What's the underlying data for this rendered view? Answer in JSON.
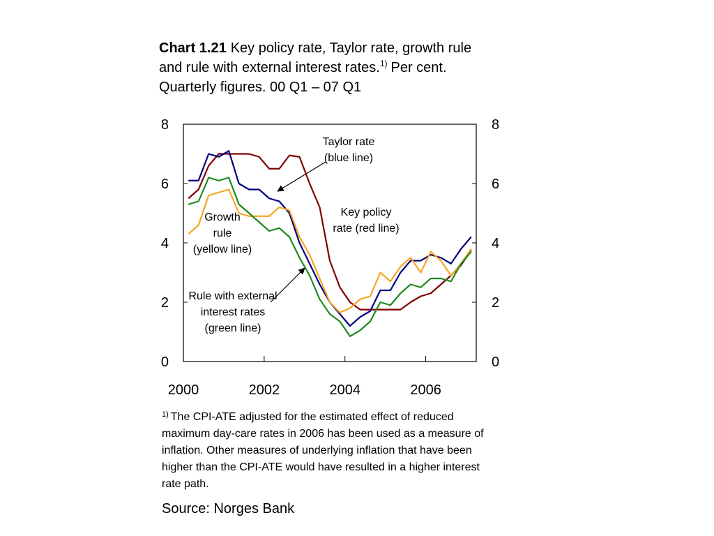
{
  "chart_data": {
    "type": "line",
    "title": {
      "number": "Chart 1.21",
      "lines": [
        "Key policy rate, Taylor rate, growth rule",
        "and rule with external interest rates.",
        "Quarterly figures. 00 Q1 –  07 Q1"
      ],
      "footnote_ref": "1)",
      "after_ref": "Per cent."
    },
    "x": [
      2000.125,
      2000.375,
      2000.625,
      2000.875,
      2001.125,
      2001.375,
      2001.625,
      2001.875,
      2002.125,
      2002.375,
      2002.625,
      2002.875,
      2003.125,
      2003.375,
      2003.625,
      2003.875,
      2004.125,
      2004.375,
      2004.625,
      2004.875,
      2005.125,
      2005.375,
      2005.625,
      2005.875,
      2006.125,
      2006.375,
      2006.625,
      2006.875,
      2007.125
    ],
    "xlim": [
      2000,
      2007.25
    ],
    "xticks": [
      2000,
      2002,
      2004,
      2006
    ],
    "ylim": [
      0,
      8
    ],
    "yticks": [
      0,
      2,
      4,
      6,
      8
    ],
    "y2lim": [
      0,
      8
    ],
    "y2ticks": [
      0,
      2,
      4,
      6,
      8
    ],
    "series": [
      {
        "name": "Key policy rate",
        "color": "#800000",
        "values": [
          5.5,
          5.8,
          6.6,
          7.0,
          7.0,
          7.0,
          7.0,
          6.9,
          6.5,
          6.5,
          6.95,
          6.9,
          6.0,
          5.2,
          3.4,
          2.5,
          2.0,
          1.75,
          1.75,
          1.75,
          1.75,
          1.75,
          2.0,
          2.2,
          2.3,
          2.6,
          2.9,
          3.25,
          3.75
        ]
      },
      {
        "name": "Taylor rate",
        "color": "#000080",
        "values": [
          6.1,
          6.1,
          7.0,
          6.9,
          7.1,
          6.0,
          5.8,
          5.8,
          5.5,
          5.4,
          5.0,
          4.0,
          3.3,
          2.6,
          2.0,
          1.6,
          1.2,
          1.5,
          1.7,
          2.4,
          2.4,
          3.0,
          3.4,
          3.4,
          3.6,
          3.5,
          3.3,
          3.8,
          4.2
        ]
      },
      {
        "name": "Growth rule",
        "color": "#f5a623",
        "values": [
          4.3,
          4.6,
          5.6,
          5.7,
          5.8,
          5.0,
          4.9,
          4.9,
          4.9,
          5.2,
          5.1,
          4.2,
          3.6,
          2.8,
          2.0,
          1.65,
          1.8,
          2.1,
          2.2,
          3.0,
          2.7,
          3.2,
          3.5,
          3.0,
          3.7,
          3.4,
          2.9,
          3.3,
          3.8
        ]
      },
      {
        "name": "Rule with external interest rates",
        "color": "#1e8a1e",
        "values": [
          5.3,
          5.4,
          6.2,
          6.1,
          6.2,
          5.3,
          5.0,
          4.7,
          4.4,
          4.5,
          4.2,
          3.5,
          2.9,
          2.1,
          1.6,
          1.35,
          0.85,
          1.05,
          1.35,
          2.0,
          1.9,
          2.3,
          2.6,
          2.5,
          2.8,
          2.8,
          2.7,
          3.3,
          3.7
        ]
      }
    ],
    "annotations": [
      {
        "lines": [
          "Taylor rate",
          "(blue line)"
        ]
      },
      {
        "lines": [
          "Key policy",
          "rate (red line)"
        ]
      },
      {
        "lines": [
          "Growth",
          "rule",
          "(yellow line)"
        ]
      },
      {
        "lines": [
          "Rule with external",
          "interest rates",
          "(green line)"
        ]
      }
    ],
    "footnote": {
      "ref": "1)",
      "lines": [
        "The CPI-ATE adjusted for the estimated effect of reduced",
        "maximum day-care rates in 2006 has been used as a measure of",
        "inflation. Other measures of underlying inflation that have been",
        "higher than the CPI-ATE would have resulted in a higher interest",
        "rate path."
      ]
    },
    "source": "Source: Norges Bank"
  }
}
